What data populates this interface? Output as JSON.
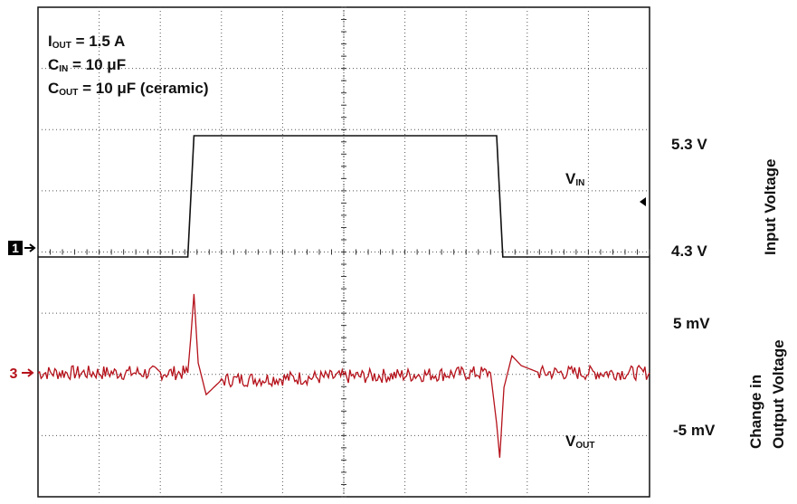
{
  "chart_data": {
    "type": "line",
    "grid": true,
    "grid_divisions": {
      "x": 10,
      "y": 8
    },
    "annotations": {
      "iout_main": "I",
      "iout_sub": "OUT",
      "iout_rest": " = 1.5 A",
      "cin_main": "C",
      "cin_sub": "IN",
      "cin_rest": " = 10 μF",
      "cout_main": "C",
      "cout_sub": "OUT",
      "cout_rest": " = 10 μF (ceramic)"
    },
    "scale_labels": {
      "vin_high": "5.3 V",
      "vin_low": "4.3 V",
      "vout_high": "5 mV",
      "vout_low": "-5 mV"
    },
    "axis_titles": {
      "input": "Input Voltage",
      "output_line1": "Change in",
      "output_line2": "Output Voltage"
    },
    "channel_markers": {
      "ch1": "1",
      "ch3": "3"
    },
    "series": [
      {
        "name": "VIN",
        "label_main": "V",
        "label_sub": "IN",
        "color": "#111111",
        "unit": "V",
        "x": [
          0,
          2.45,
          2.55,
          7.5,
          7.6,
          10
        ],
        "y": [
          4.3,
          4.3,
          5.3,
          5.3,
          4.3,
          4.3
        ]
      },
      {
        "name": "VOUT",
        "label_main": "V",
        "label_sub": "OUT",
        "color": "#b5121b",
        "unit": "mV",
        "x": [
          0,
          2.45,
          2.5,
          2.55,
          2.62,
          2.75,
          3.0,
          7.4,
          7.5,
          7.55,
          7.62,
          7.75,
          7.9,
          8.2,
          10
        ],
        "y": [
          0,
          0,
          3.0,
          6.5,
          0.8,
          -1.8,
          -0.6,
          0,
          -4.2,
          -7.0,
          -1.2,
          1.4,
          0.6,
          0,
          0
        ]
      }
    ],
    "marker_color": "#b5121b"
  }
}
